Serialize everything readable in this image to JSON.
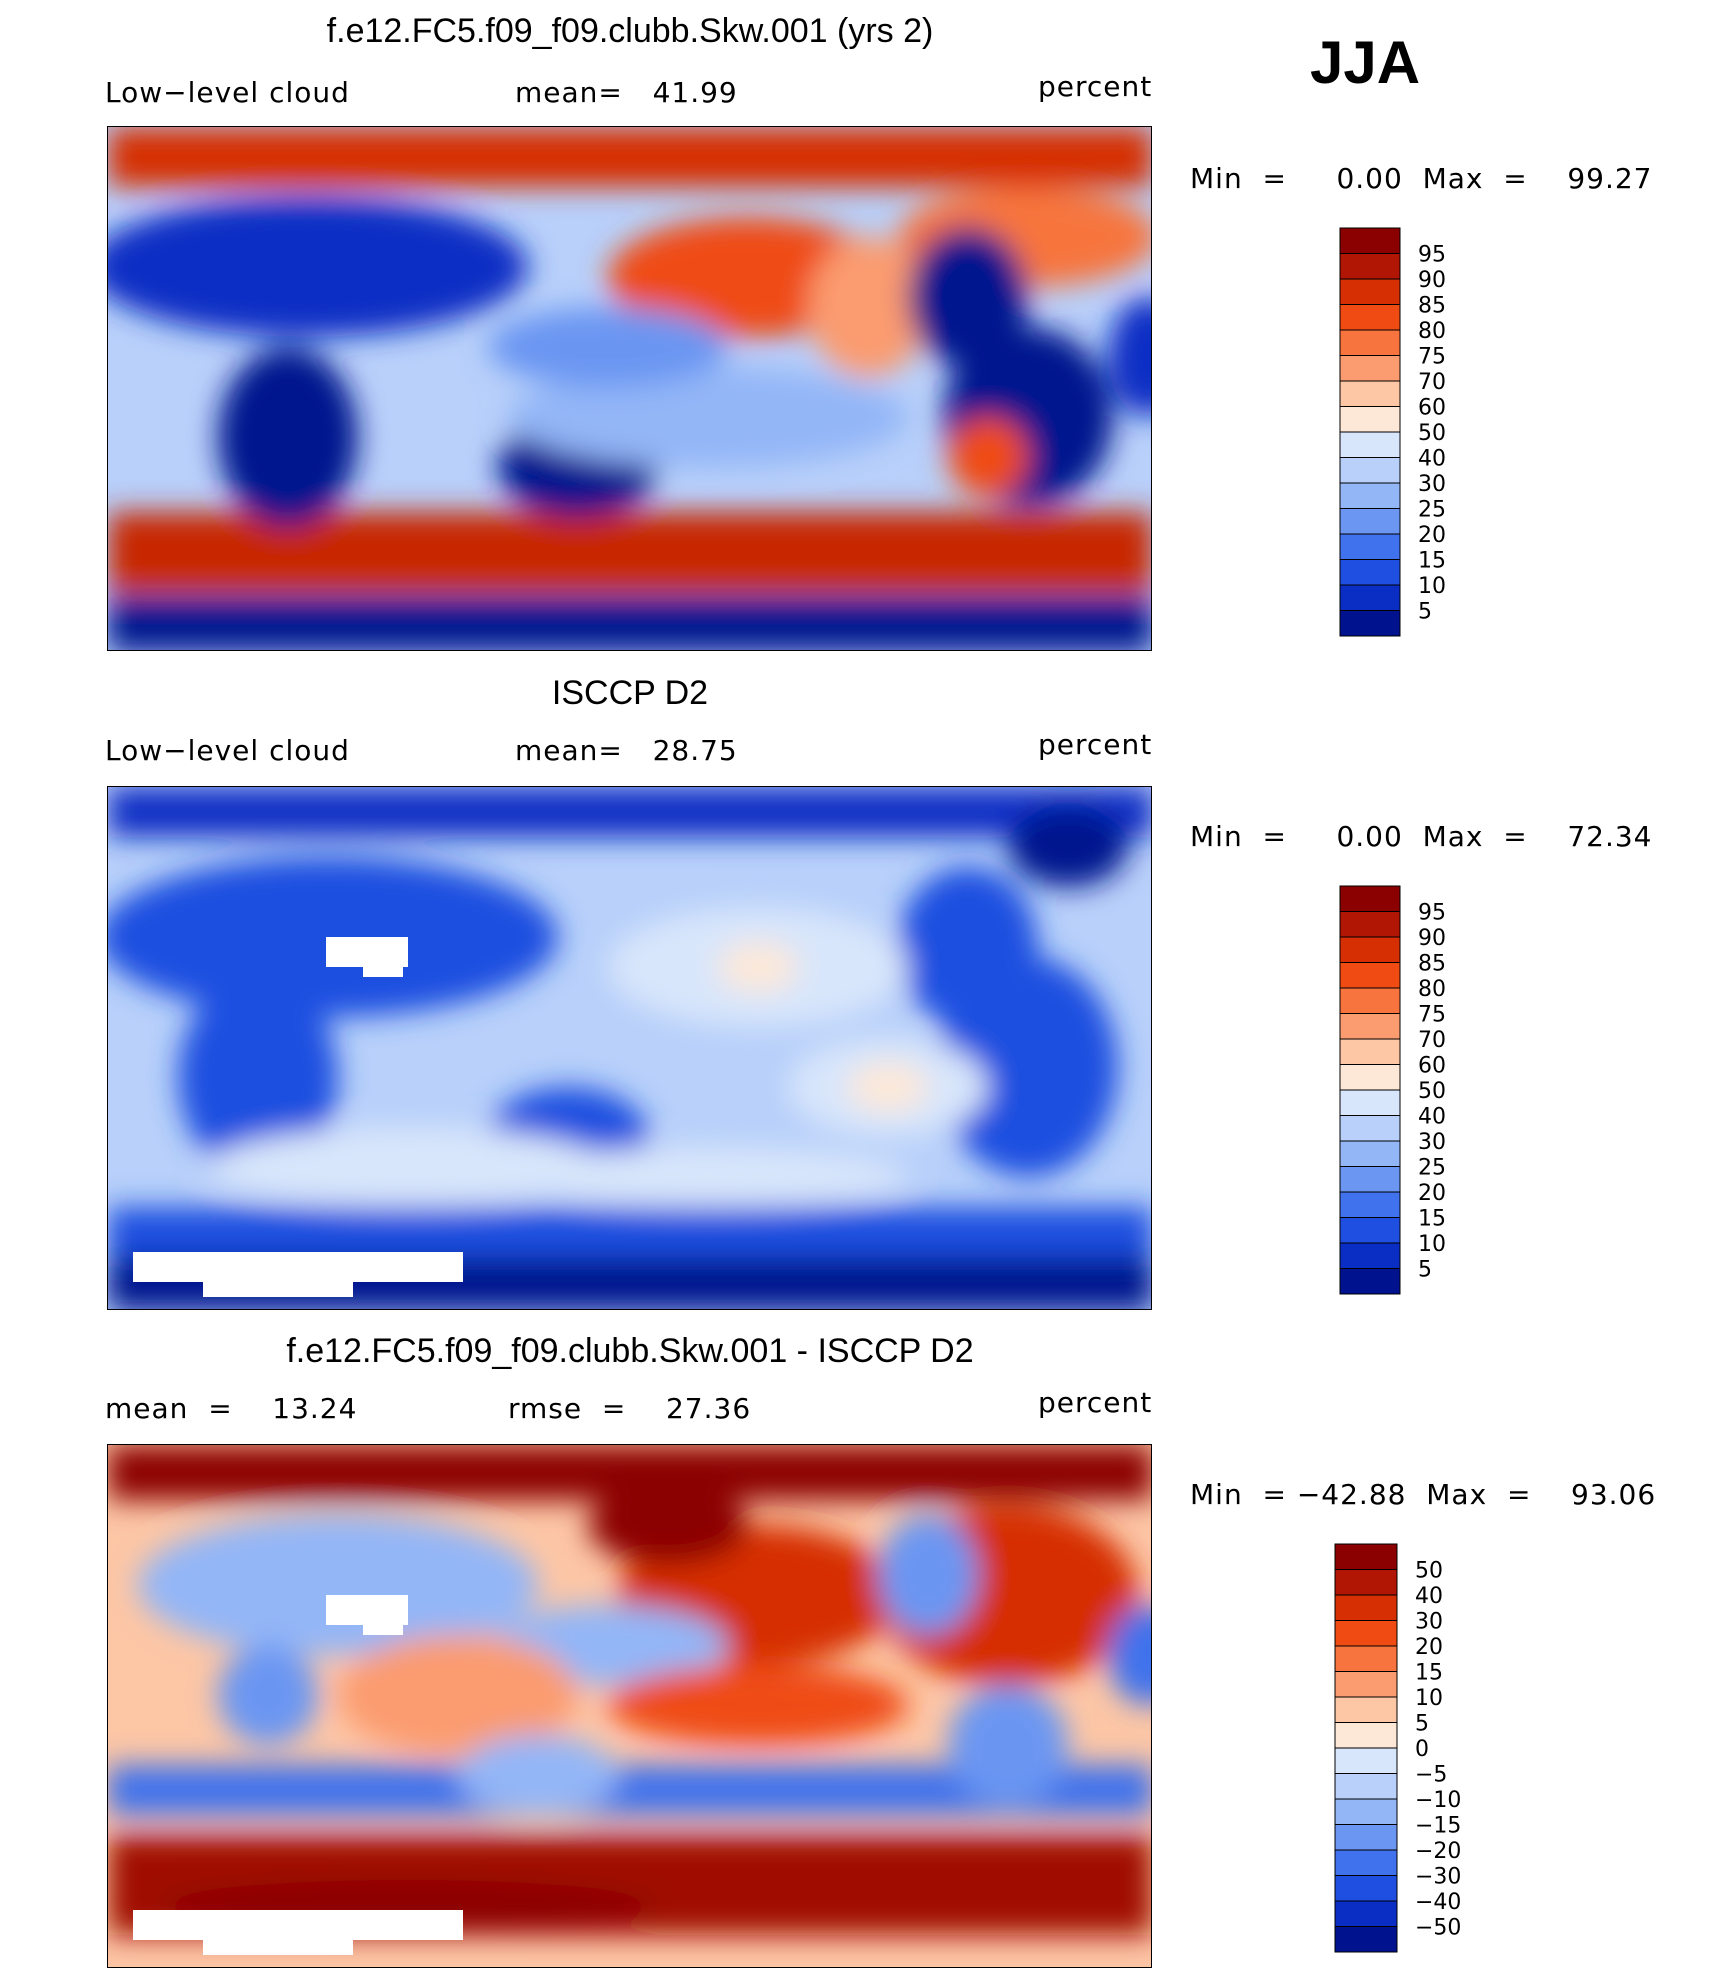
{
  "season": "JJA",
  "panels": [
    {
      "id": "model",
      "title": "f.e12.FC5.f09_f09.clubb.Skw.001 (yrs 2)",
      "left_label": "Low−level cloud",
      "center_label": "mean=   41.99",
      "right_label": "percent",
      "minmax": "Min  =     0.00  Max  =    99.27",
      "colorbar": {
        "levels": [
          "95",
          "90",
          "85",
          "80",
          "75",
          "70",
          "60",
          "50",
          "40",
          "30",
          "25",
          "20",
          "15",
          "10",
          "5"
        ],
        "colors": [
          "#8b0000",
          "#b11503",
          "#d62f03",
          "#ef4b12",
          "#f7743e",
          "#fb9b70",
          "#fdc6a5",
          "#fde8d8",
          "#d8e6fb",
          "#b8d0fa",
          "#93b6f7",
          "#6b96f2",
          "#3f72ec",
          "#1e4fe0",
          "#0a2ec4",
          "#00128e"
        ]
      }
    },
    {
      "id": "obs",
      "title": "ISCCP D2",
      "left_label": "Low−level cloud",
      "center_label": "mean=   28.75",
      "right_label": "percent",
      "minmax": "Min  =     0.00  Max  =    72.34",
      "colorbar": {
        "levels": [
          "95",
          "90",
          "85",
          "80",
          "75",
          "70",
          "60",
          "50",
          "40",
          "30",
          "25",
          "20",
          "15",
          "10",
          "5"
        ],
        "colors": [
          "#8b0000",
          "#b11503",
          "#d62f03",
          "#ef4b12",
          "#f7743e",
          "#fb9b70",
          "#fdc6a5",
          "#fde8d8",
          "#d8e6fb",
          "#b8d0fa",
          "#93b6f7",
          "#6b96f2",
          "#3f72ec",
          "#1e4fe0",
          "#0a2ec4",
          "#00128e"
        ]
      }
    },
    {
      "id": "diff",
      "title": "f.e12.FC5.f09_f09.clubb.Skw.001 - ISCCP D2",
      "left_label": "mean  =    13.24",
      "center_label": "rmse  =    27.36",
      "right_label": "percent",
      "minmax": "Min  = −42.88  Max  =    93.06",
      "colorbar": {
        "levels": [
          "50",
          "40",
          "30",
          "20",
          "15",
          "10",
          "5",
          "0",
          "−5",
          "−10",
          "−15",
          "−20",
          "−30",
          "−40",
          "−50"
        ],
        "colors": [
          "#8b0000",
          "#b11503",
          "#d62f03",
          "#ef4b12",
          "#f7743e",
          "#fb9b70",
          "#fdc6a5",
          "#fde8d8",
          "#d8e6fb",
          "#b8d0fa",
          "#93b6f7",
          "#6b96f2",
          "#3f72ec",
          "#1e4fe0",
          "#0a2ec4",
          "#00128e"
        ]
      }
    }
  ],
  "chart_data": [
    {
      "type": "heatmap",
      "title": "f.e12.FC5.f09_f09.clubb.Skw.001 (yrs 2)",
      "variable": "Low−level cloud",
      "units": "percent",
      "mean": 41.99,
      "min": 0.0,
      "max": 99.27,
      "contour_levels": [
        5,
        10,
        15,
        20,
        25,
        30,
        40,
        50,
        60,
        70,
        75,
        80,
        85,
        90,
        95
      ],
      "colors": [
        "#00128e",
        "#0a2ec4",
        "#1e4fe0",
        "#3f72ec",
        "#6b96f2",
        "#93b6f7",
        "#b8d0fa",
        "#d8e6fb",
        "#fde8d8",
        "#fdc6a5",
        "#fb9b70",
        "#f7743e",
        "#ef4b12",
        "#d62f03",
        "#b11503",
        "#8b0000"
      ]
    },
    {
      "type": "heatmap",
      "title": "ISCCP D2",
      "variable": "Low−level cloud",
      "units": "percent",
      "mean": 28.75,
      "min": 0.0,
      "max": 72.34,
      "contour_levels": [
        5,
        10,
        15,
        20,
        25,
        30,
        40,
        50,
        60,
        70,
        75,
        80,
        85,
        90,
        95
      ],
      "colors": [
        "#00128e",
        "#0a2ec4",
        "#1e4fe0",
        "#3f72ec",
        "#6b96f2",
        "#93b6f7",
        "#b8d0fa",
        "#d8e6fb",
        "#fde8d8",
        "#fdc6a5",
        "#fb9b70",
        "#f7743e",
        "#ef4b12",
        "#d62f03",
        "#b11503",
        "#8b0000"
      ]
    },
    {
      "type": "heatmap",
      "title": "f.e12.FC5.f09_f09.clubb.Skw.001 - ISCCP D2",
      "units": "percent",
      "mean": 13.24,
      "rmse": 27.36,
      "min": -42.88,
      "max": 93.06,
      "contour_levels": [
        -50,
        -40,
        -30,
        -20,
        -15,
        -10,
        -5,
        0,
        5,
        10,
        15,
        20,
        30,
        40,
        50
      ],
      "colors": [
        "#00128e",
        "#0a2ec4",
        "#1e4fe0",
        "#3f72ec",
        "#6b96f2",
        "#93b6f7",
        "#b8d0fa",
        "#d8e6fb",
        "#fde8d8",
        "#fdc6a5",
        "#fb9b70",
        "#f7743e",
        "#ef4b12",
        "#d62f03",
        "#b11503",
        "#8b0000"
      ]
    }
  ]
}
